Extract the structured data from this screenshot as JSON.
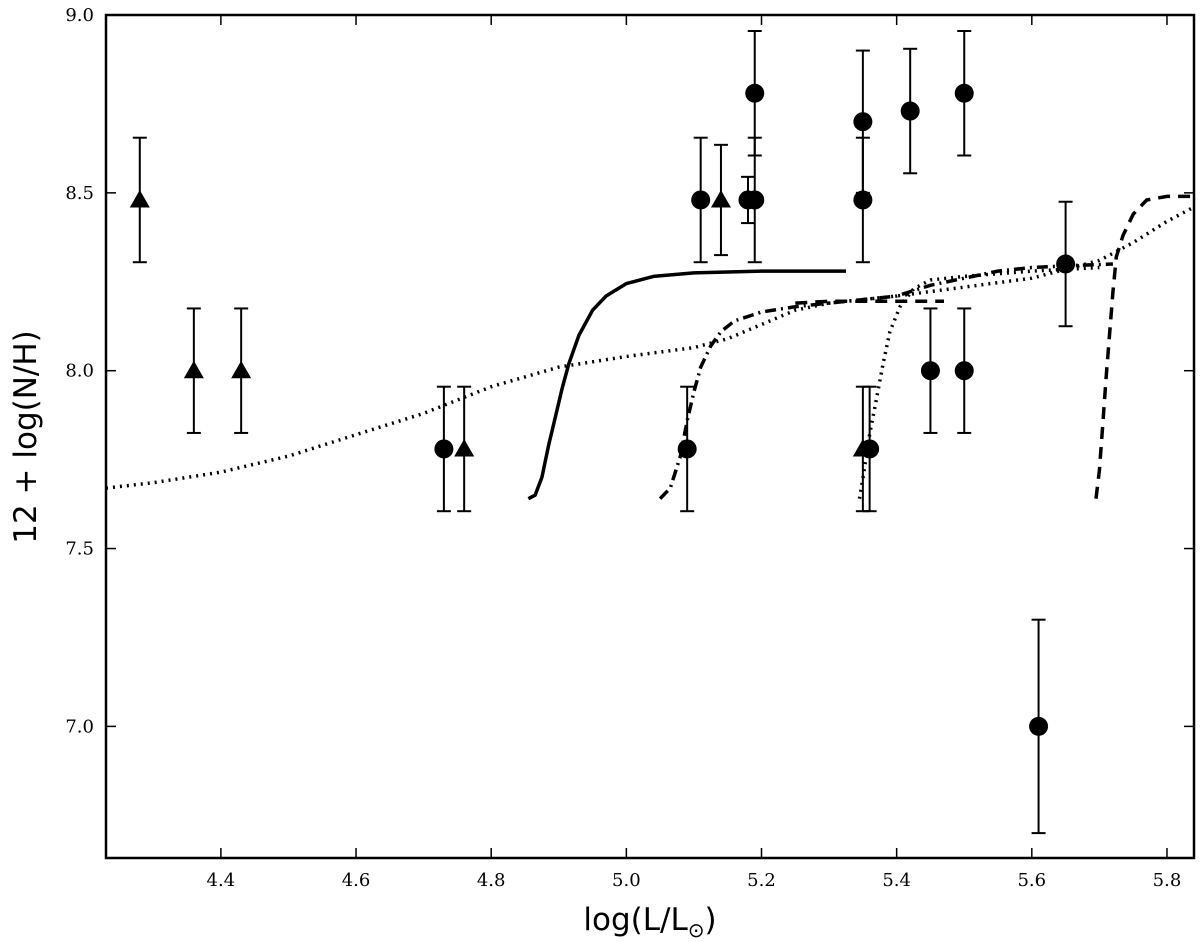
{
  "chart_data": {
    "type": "scatter",
    "title": "",
    "xlabel": "log(L/L",
    "xlabel_sub": "⊙",
    "xlabel_suffix": ")",
    "ylabel": "12 + log(N/H)",
    "xlim": [
      4.23,
      5.84
    ],
    "ylim": [
      6.63,
      9.0
    ],
    "xticks": [
      4.4,
      4.6,
      4.8,
      5.0,
      5.2,
      5.4,
      5.6,
      5.8
    ],
    "xtick_labels": [
      "4.4",
      "4.6",
      "4.8",
      "5.0",
      "5.2",
      "5.4",
      "5.6",
      "5.8"
    ],
    "yticks": [
      7.0,
      7.5,
      8.0,
      8.5,
      9.0
    ],
    "ytick_labels": [
      "7.0",
      "7.5",
      "8.0",
      "8.5",
      "9.0"
    ],
    "grid": false,
    "legend": "none",
    "color": "#000000",
    "series": [
      {
        "marker": "circle",
        "points": [
          {
            "x": 4.73,
            "y": 7.78,
            "err": 0.175
          },
          {
            "x": 5.09,
            "y": 7.78,
            "err": 0.175
          },
          {
            "x": 5.11,
            "y": 8.48,
            "err": 0.175
          },
          {
            "x": 5.18,
            "y": 8.48,
            "err": 0.065
          },
          {
            "x": 5.19,
            "y": 8.48,
            "err": 0.175
          },
          {
            "x": 5.19,
            "y": 8.78,
            "err": 0.175
          },
          {
            "x": 5.35,
            "y": 8.7,
            "err": 0.2
          },
          {
            "x": 5.35,
            "y": 8.48,
            "err": 0.175
          },
          {
            "x": 5.36,
            "y": 7.78,
            "err": 0.175
          },
          {
            "x": 5.42,
            "y": 8.73,
            "err": 0.175
          },
          {
            "x": 5.45,
            "y": 8.0,
            "err": 0.175
          },
          {
            "x": 5.5,
            "y": 8.78,
            "err": 0.175
          },
          {
            "x": 5.5,
            "y": 8.0,
            "err": 0.175
          },
          {
            "x": 5.61,
            "y": 7.0,
            "err": 0.3
          },
          {
            "x": 5.65,
            "y": 8.3,
            "err": 0.175
          }
        ]
      },
      {
        "marker": "triangle",
        "points": [
          {
            "x": 4.28,
            "y": 8.48,
            "err": 0.175
          },
          {
            "x": 4.36,
            "y": 8.0,
            "err": 0.175
          },
          {
            "x": 4.43,
            "y": 8.0,
            "err": 0.175
          },
          {
            "x": 4.76,
            "y": 7.78,
            "err": 0.175
          },
          {
            "x": 5.14,
            "y": 8.48,
            "err": 0.155
          },
          {
            "x": 5.35,
            "y": 7.78,
            "err": 0.175
          }
        ]
      }
    ],
    "curves": [
      {
        "style": "solid",
        "points": [
          [
            4.855,
            7.64
          ],
          [
            4.865,
            7.65
          ],
          [
            4.875,
            7.7
          ],
          [
            4.885,
            7.79
          ],
          [
            4.895,
            7.87
          ],
          [
            4.905,
            7.95
          ],
          [
            4.915,
            8.02
          ],
          [
            4.93,
            8.1
          ],
          [
            4.95,
            8.17
          ],
          [
            4.97,
            8.21
          ],
          [
            5.0,
            8.245
          ],
          [
            5.04,
            8.265
          ],
          [
            5.1,
            8.275
          ],
          [
            5.2,
            8.28
          ],
          [
            5.325,
            8.28
          ]
        ]
      },
      {
        "style": "dashdot",
        "points": [
          [
            5.05,
            7.64
          ],
          [
            5.065,
            7.67
          ],
          [
            5.08,
            7.76
          ],
          [
            5.09,
            7.86
          ],
          [
            5.1,
            7.94
          ],
          [
            5.11,
            8.01
          ],
          [
            5.125,
            8.07
          ],
          [
            5.14,
            8.11
          ],
          [
            5.16,
            8.14
          ],
          [
            5.2,
            8.165
          ],
          [
            5.25,
            8.18
          ],
          [
            5.3,
            8.19
          ],
          [
            5.35,
            8.2
          ],
          [
            5.4,
            8.21
          ],
          [
            5.45,
            8.24
          ],
          [
            5.5,
            8.26
          ],
          [
            5.55,
            8.28
          ],
          [
            5.6,
            8.29
          ],
          [
            5.65,
            8.295
          ],
          [
            5.72,
            8.3
          ]
        ]
      },
      {
        "style": "dashed",
        "points": [
          [
            5.25,
            8.19
          ],
          [
            5.3,
            8.195
          ],
          [
            5.35,
            8.195
          ],
          [
            5.4,
            8.195
          ],
          [
            5.47,
            8.195
          ]
        ]
      },
      {
        "style": "dashed",
        "points": [
          [
            5.695,
            7.64
          ],
          [
            5.7,
            7.72
          ],
          [
            5.705,
            7.85
          ],
          [
            5.71,
            7.98
          ],
          [
            5.715,
            8.1
          ],
          [
            5.72,
            8.22
          ],
          [
            5.725,
            8.32
          ],
          [
            5.735,
            8.38
          ],
          [
            5.75,
            8.44
          ],
          [
            5.77,
            8.48
          ],
          [
            5.8,
            8.49
          ],
          [
            5.84,
            8.49
          ]
        ]
      },
      {
        "style": "dotted",
        "points": [
          [
            4.23,
            7.67
          ],
          [
            4.3,
            7.685
          ],
          [
            4.4,
            7.715
          ],
          [
            4.5,
            7.76
          ],
          [
            4.6,
            7.82
          ],
          [
            4.7,
            7.88
          ],
          [
            4.8,
            7.955
          ],
          [
            4.9,
            8.01
          ],
          [
            5.0,
            8.04
          ],
          [
            5.1,
            8.065
          ],
          [
            5.15,
            8.09
          ],
          [
            5.2,
            8.13
          ],
          [
            5.25,
            8.17
          ],
          [
            5.3,
            8.19
          ],
          [
            5.4,
            8.21
          ],
          [
            5.5,
            8.235
          ],
          [
            5.6,
            8.26
          ],
          [
            5.7,
            8.31
          ],
          [
            5.75,
            8.36
          ],
          [
            5.8,
            8.42
          ],
          [
            5.84,
            8.46
          ]
        ]
      },
      {
        "style": "dotted",
        "points": [
          [
            5.345,
            7.64
          ],
          [
            5.352,
            7.72
          ],
          [
            5.36,
            7.82
          ],
          [
            5.37,
            7.92
          ],
          [
            5.38,
            8.02
          ],
          [
            5.39,
            8.11
          ],
          [
            5.405,
            8.18
          ],
          [
            5.425,
            8.23
          ],
          [
            5.45,
            8.255
          ],
          [
            5.5,
            8.265
          ],
          [
            5.6,
            8.28
          ],
          [
            5.7,
            8.29
          ]
        ]
      }
    ]
  }
}
